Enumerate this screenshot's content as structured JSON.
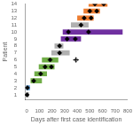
{
  "chart_data": {
    "type": "bar",
    "orientation": "horizontal",
    "grid": false,
    "xlabel": "Days after first case identification",
    "ylabel": "Patient",
    "xlim": [
      -15,
      800
    ],
    "xticks": [
      0,
      100,
      200,
      300,
      400,
      500,
      600,
      700,
      800
    ],
    "ylim": [
      0.3,
      14.0
    ],
    "yticks": [
      1,
      2,
      3,
      4,
      5,
      6,
      7,
      8,
      9,
      10,
      11,
      12,
      13,
      14
    ],
    "series": [
      {
        "type": "bar",
        "y": [
          1,
          2,
          3,
          4,
          5,
          6,
          7,
          8,
          9,
          10,
          11,
          12,
          13,
          14
        ],
        "values": [
          [
            -5,
            18
          ],
          [
            -5,
            25
          ],
          [
            30,
            120
          ],
          [
            60,
            160
          ],
          [
            95,
            220
          ],
          [
            120,
            250
          ],
          [
            195,
            340
          ],
          [
            220,
            290
          ],
          [
            270,
            430
          ],
          [
            285,
            760
          ],
          [
            350,
            490
          ],
          [
            400,
            530
          ],
          [
            450,
            580
          ],
          [
            490,
            640
          ]
        ],
        "colors": [
          "#b0b0b0",
          "#5b9bd5",
          "#70ad47",
          "#70ad47",
          "#70ad47",
          "#70ad47",
          "#b0b0b0",
          "#b0b0b0",
          "#7030a0",
          "#7030a0",
          "#b0b0b0",
          "#ed7d31",
          "#ed7d31",
          "#ed7d31"
        ]
      },
      {
        "type": "scatter",
        "marker": "diamond",
        "color": "#000000",
        "x": [
          2,
          5,
          55,
          110,
          145,
          195,
          185,
          260,
          260,
          320,
          385,
          330,
          490,
          430,
          455,
          510,
          500,
          555,
          540,
          610
        ],
        "y": [
          1,
          2,
          3,
          4,
          5,
          5,
          6,
          7,
          8,
          9,
          9,
          10,
          10,
          11,
          12,
          12,
          13,
          13,
          14,
          14
        ]
      },
      {
        "type": "scatter",
        "marker": "open_diamond",
        "color": "#000000",
        "x": [
          390
        ],
        "y": [
          6
        ]
      },
      {
        "type": "scatter",
        "marker": "plus",
        "color": "#000000",
        "x": [
          390
        ],
        "y": [
          6
        ]
      }
    ]
  }
}
